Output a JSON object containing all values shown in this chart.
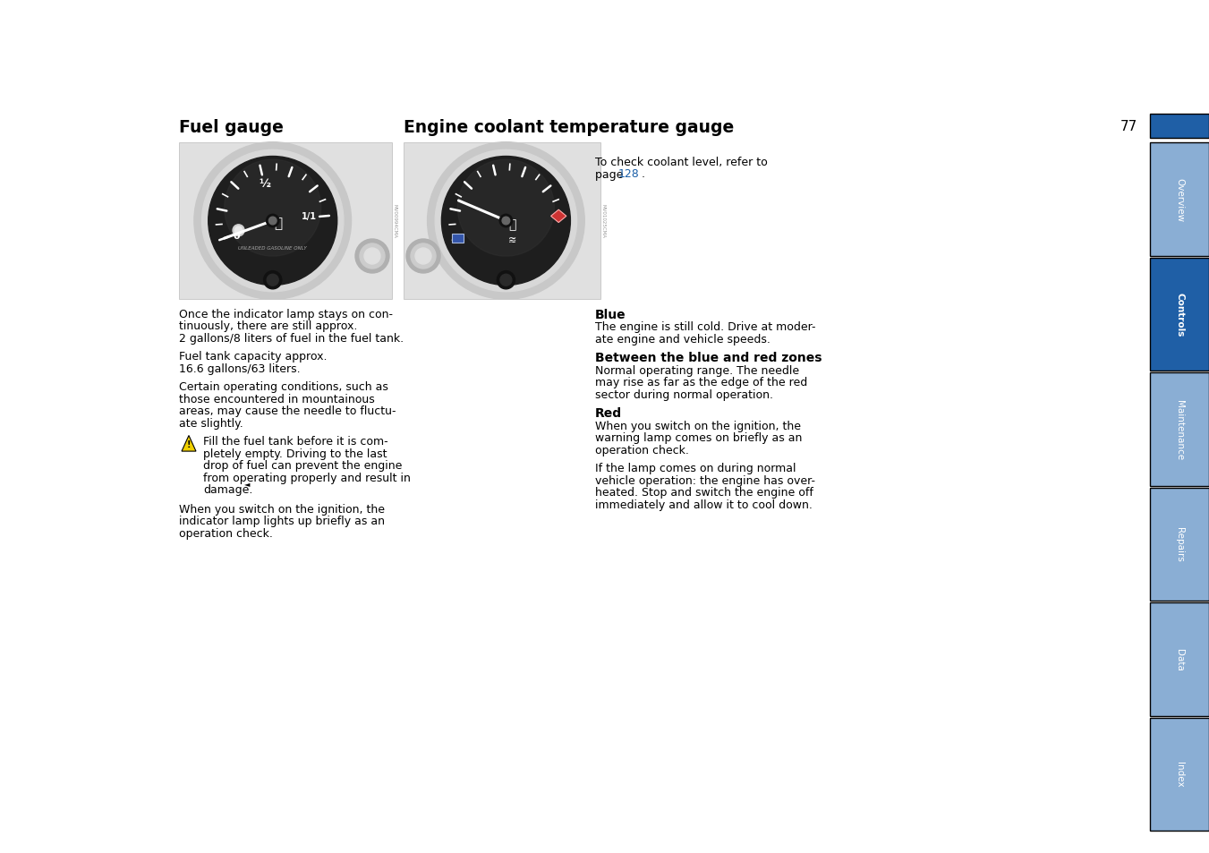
{
  "page_number": "77",
  "bg_color": "#ffffff",
  "title_fuel": "Fuel gauge",
  "title_coolant": "Engine coolant temperature gauge",
  "sidebar_tabs": [
    "Overview",
    "Controls",
    "Maintenance",
    "Repairs",
    "Data",
    "Index"
  ],
  "sidebar_active": "Controls",
  "sidebar_active_color": "#1f5fa6",
  "sidebar_inactive_color": "#8aaed4",
  "header_bar_color": "#1f5fa6",
  "link_color": "#1a5fa8",
  "text_color": "#000000",
  "title_fontsize": 13.5,
  "body_fontsize": 9.0,
  "bold_fontsize": 10.0,
  "heading_blue": "Blue",
  "heading_between": "Between the blue and red zones",
  "heading_red": "Red",
  "coolant_intro_1": "To check coolant level, refer to",
  "coolant_intro_2": "page ",
  "coolant_page_num": "128",
  "coolant_intro_3": ".",
  "blue_text_1": "The engine is still cold. Drive at moder-",
  "blue_text_2": "ate engine and vehicle speeds.",
  "between_text_1": "Normal operating range. The needle",
  "between_text_2": "may rise as far as the edge of the red",
  "between_text_3": "sector during normal operation.",
  "red_text_1a": "When you switch on the ignition, the",
  "red_text_1b": "warning lamp comes on briefly as an",
  "red_text_1c": "operation check.",
  "red_text_2a": "If the lamp comes on during normal",
  "red_text_2b": "vehicle operation: the engine has over-",
  "red_text_2c": "heated. Stop and switch the engine off",
  "red_text_2d": "immediately and allow it to cool down.",
  "fuel_t1a": "Once the indicator lamp stays on con-",
  "fuel_t1b": "tinuously, there are still approx.",
  "fuel_t1c": "2 gallons/8 liters of fuel in the fuel tank.",
  "fuel_t2a": "Fuel tank capacity approx.",
  "fuel_t2b": "16.6 gallons/63 liters.",
  "fuel_t3a": "Certain operating conditions, such as",
  "fuel_t3b": "those encountered in mountainous",
  "fuel_t3c": "areas, may cause the needle to fluctu-",
  "fuel_t3d": "ate slightly.",
  "fuel_warn_a": "Fill the fuel tank before it is com-",
  "fuel_warn_b": "pletely empty. Driving to the last",
  "fuel_warn_c": "drop of fuel can prevent the engine",
  "fuel_warn_d": "from operating properly and result in",
  "fuel_warn_e": "damage.",
  "fuel_t4a": "When you switch on the ignition, the",
  "fuel_t4b": "indicator lamp lights up briefly as an",
  "fuel_t4c": "operation check.",
  "img_code_fuel": "MV00994CMA",
  "img_code_coolant": "MV01025CMA"
}
